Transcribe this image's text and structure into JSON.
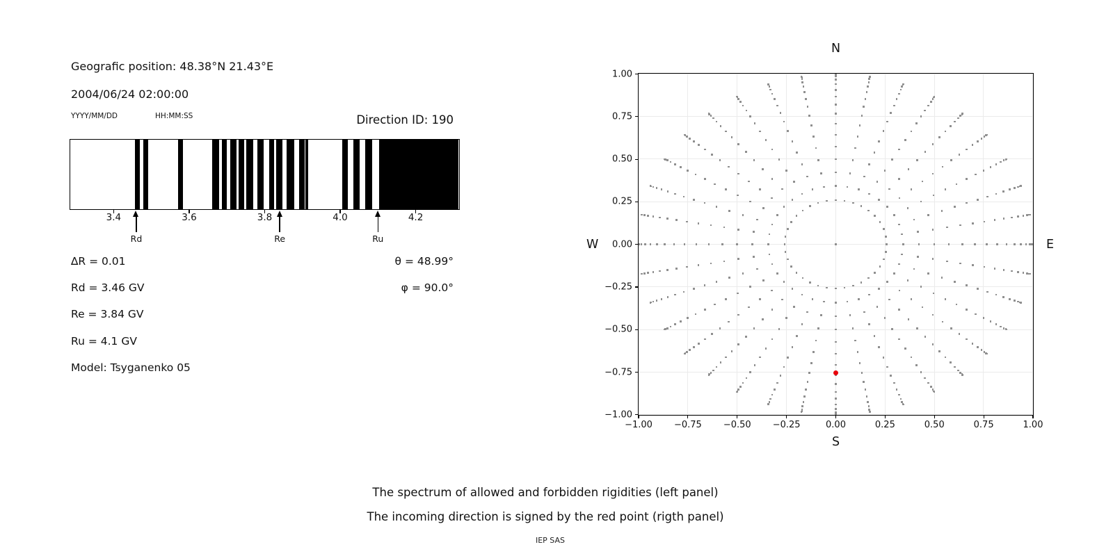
{
  "left_panel": {
    "geo_position": "Geografic position: 48.38°N 21.43°E",
    "datetime": "2004/06/24 02:00:00",
    "date_format_label": "YYYY/MM/DD",
    "time_format_label": "HH:MM:SS",
    "direction_id": "Direction ID: 190",
    "values": {
      "delta_r": "∆R = 0.01",
      "rd": "Rd = 3.46 GV",
      "re": "Re = 3.84 GV",
      "ru": "Ru = 4.1 GV",
      "model": "Model: Tsyganenko 05",
      "theta": "θ = 48.99°",
      "phi": "φ = 90.0°"
    }
  },
  "right_panel": {
    "compass": {
      "north": "N",
      "south": "S",
      "west": "W",
      "east": "E"
    }
  },
  "caption": {
    "line1": "The spectrum of allowed and forbidden rigidities (left panel)",
    "line2": "The incoming direction is signed by the red point (rigth panel)",
    "credit": "IEP SAS"
  },
  "chart_data": [
    {
      "id": "rigidity-spectrum",
      "type": "bar",
      "description": "Barcode spectrum of allowed (black) and forbidden (white) rigidities",
      "xlabel_unit": "GV",
      "x_axis": {
        "min": 3.285,
        "max": 4.315,
        "ticks": [
          3.4,
          3.6,
          3.8,
          4.0,
          4.2
        ]
      },
      "allowed_bands_gv": [
        [
          3.458,
          3.47
        ],
        [
          3.48,
          3.492
        ],
        [
          3.572,
          3.585
        ],
        [
          3.662,
          3.68
        ],
        [
          3.688,
          3.701
        ],
        [
          3.71,
          3.727
        ],
        [
          3.731,
          3.747
        ],
        [
          3.752,
          3.771
        ],
        [
          3.782,
          3.798
        ],
        [
          3.813,
          3.825
        ],
        [
          3.832,
          3.847
        ],
        [
          3.859,
          3.88
        ],
        [
          3.893,
          3.906
        ],
        [
          3.909,
          3.917
        ],
        [
          4.006,
          4.022
        ],
        [
          4.036,
          4.052
        ],
        [
          4.068,
          4.086
        ],
        [
          4.104,
          4.315
        ]
      ],
      "markers": [
        {
          "label": "Rd",
          "value_gv": 3.46
        },
        {
          "label": "Re",
          "value_gv": 3.84
        },
        {
          "label": "Ru",
          "value_gv": 4.1
        }
      ],
      "delta_r_gv": 0.01,
      "bar_color": "#000000"
    },
    {
      "id": "direction-map",
      "type": "scatter",
      "description": "Grid of viewing directions; red point marks the incoming direction",
      "xlim": [
        -1.0,
        1.0
      ],
      "ylim": [
        -1.0,
        1.0
      ],
      "x_ticks": [
        -1.0,
        -0.75,
        -0.5,
        -0.25,
        0.0,
        0.25,
        0.5,
        0.75,
        1.0
      ],
      "y_ticks": [
        -1.0,
        -0.75,
        -0.5,
        -0.25,
        0.0,
        0.25,
        0.5,
        0.75,
        1.0
      ],
      "grid": true,
      "gray_points": {
        "color": "#8f8f8f",
        "marker": "square",
        "includes_center_point": true,
        "azimuth_deg": {
          "start": 0,
          "step": 10,
          "count": 36
        },
        "zenith_deg": {
          "start": 15,
          "step": 5,
          "end": 90
        },
        "radius_rule": "r = sin(zenith), x = r·sin(azimuth), y = r·cos(azimuth)"
      },
      "red_point": {
        "x": 0.0,
        "y": -0.755,
        "color": "#e8000b"
      }
    }
  ]
}
